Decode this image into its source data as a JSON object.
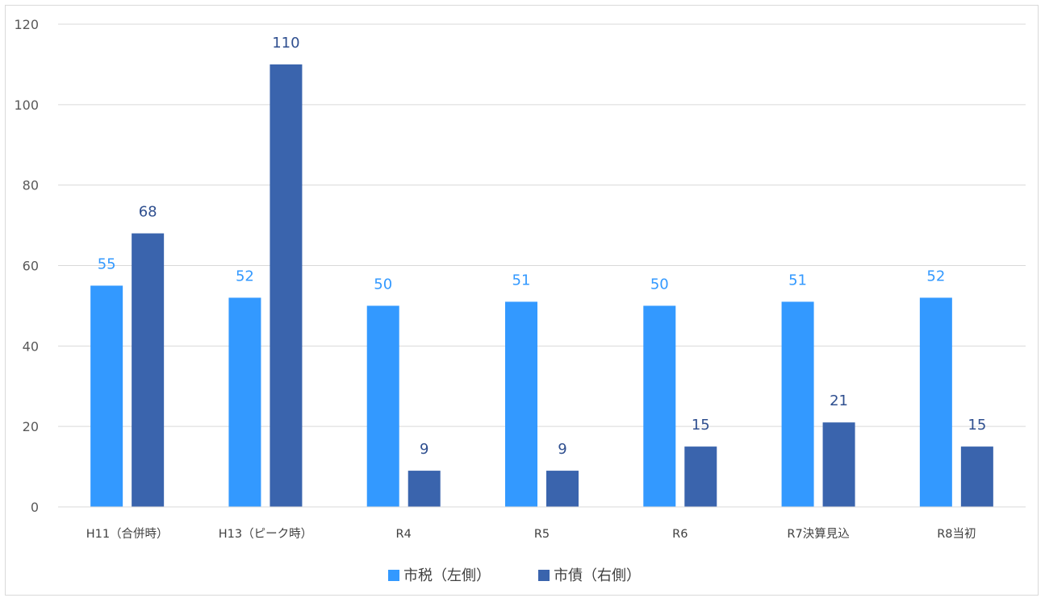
{
  "chart_data": {
    "type": "bar",
    "categories": [
      "H11（合併時）",
      "H13（ピーク時）",
      "R4",
      "R5",
      "R6",
      "R7決算見込",
      "R8当初"
    ],
    "series": [
      {
        "name": "市税（左側）",
        "values": [
          55,
          52,
          50,
          51,
          50,
          51,
          52
        ],
        "color": "#3399ff",
        "label_color": "#3399ff"
      },
      {
        "name": "市債（右側）",
        "values": [
          68,
          110,
          9,
          9,
          15,
          21,
          15
        ],
        "color": "#3a64ad",
        "label_color": "#2f4f8f"
      }
    ],
    "ylim": [
      0,
      120
    ],
    "yticks": [
      "0",
      "20",
      "40",
      "60",
      "80",
      "100",
      "120"
    ],
    "grid": true,
    "legend": "bottom"
  }
}
